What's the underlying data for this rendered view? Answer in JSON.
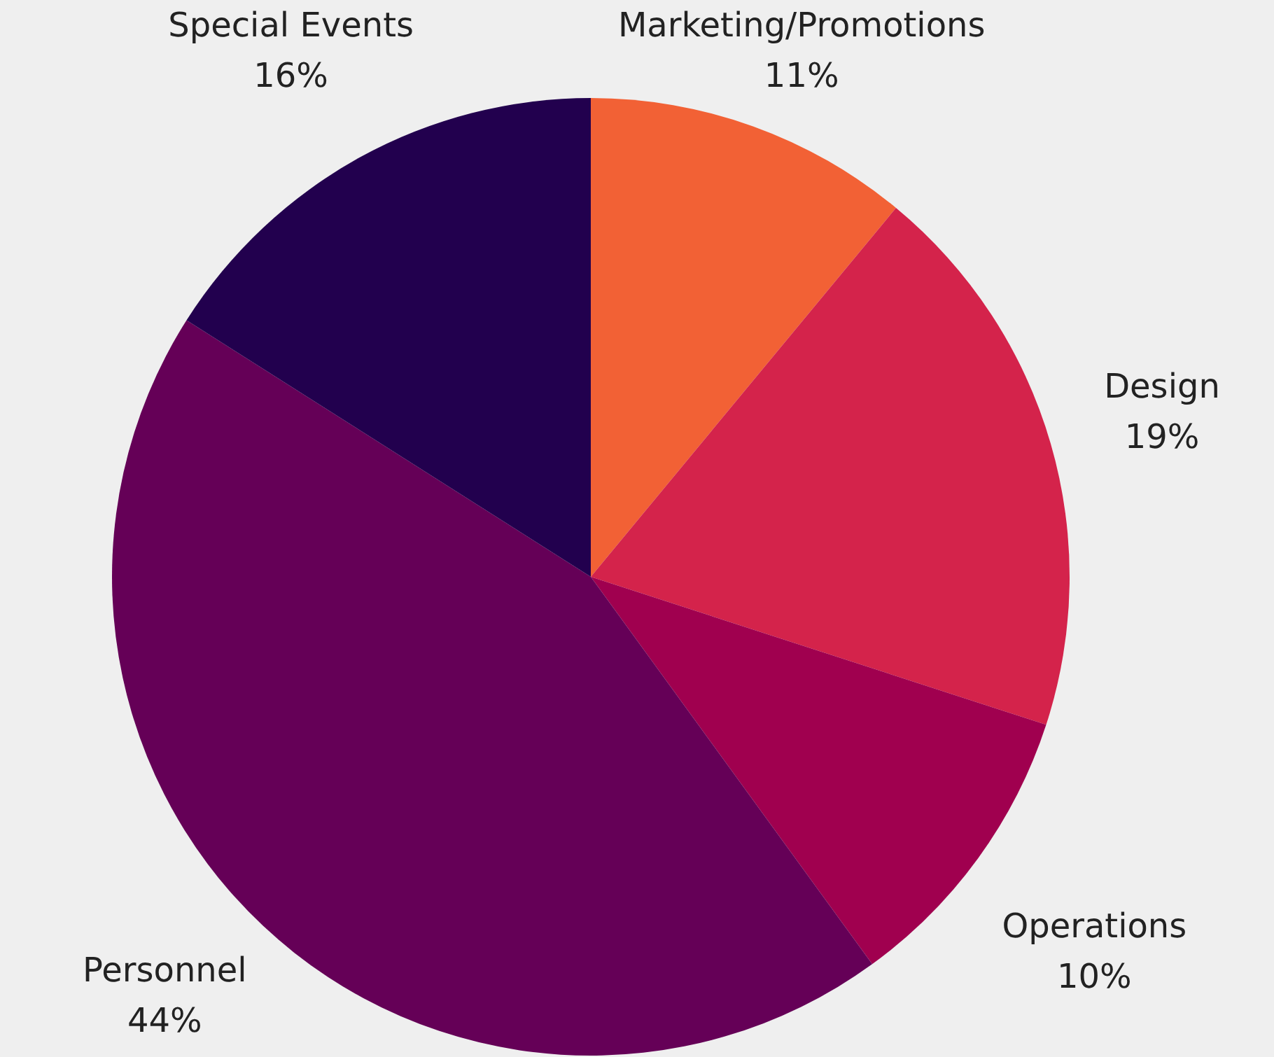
{
  "chart_data": {
    "type": "pie",
    "categories": [
      "Marketing/Promotions",
      "Design",
      "Operations",
      "Personnel",
      "Special Events"
    ],
    "values": [
      11,
      19,
      10,
      44,
      16
    ],
    "value_labels": [
      "11%",
      "19%",
      "10%",
      "44%",
      "16%"
    ],
    "colors": [
      "#f26135",
      "#d4234b",
      "#a0004f",
      "#650057",
      "#22004e"
    ]
  }
}
